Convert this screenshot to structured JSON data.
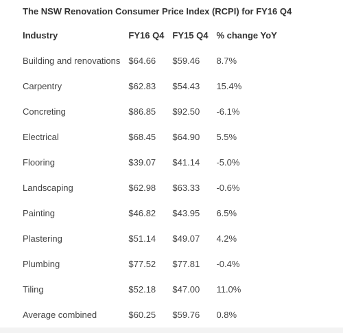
{
  "title": "The NSW Renovation Consumer Price Index (RCPI) for FY16 Q4",
  "table": {
    "headers": [
      "Industry",
      "FY16 Q4",
      "FY15 Q4",
      "% change YoY"
    ],
    "rows": [
      [
        "Building and renovations",
        "$64.66",
        "$59.46",
        "8.7%"
      ],
      [
        "Carpentry",
        "$62.83",
        "$54.43",
        "15.4%"
      ],
      [
        "Concreting",
        "$86.85",
        "$92.50",
        "-6.1%"
      ],
      [
        "Electrical",
        "$68.45",
        "$64.90",
        "5.5%"
      ],
      [
        "Flooring",
        "$39.07",
        "$41.14",
        "-5.0%"
      ],
      [
        "Landscaping",
        "$62.98",
        "$63.33",
        "-0.6%"
      ],
      [
        "Painting",
        "$46.82",
        "$43.95",
        "6.5%"
      ],
      [
        "Plastering",
        "$51.14",
        "$49.07",
        "4.2%"
      ],
      [
        "Plumbing",
        "$77.52",
        "$77.81",
        "-0.4%"
      ],
      [
        "Tiling",
        "$52.18",
        "$47.00",
        "11.0%"
      ],
      [
        "Average combined",
        "$60.25",
        "$59.76",
        "0.8%"
      ]
    ]
  }
}
